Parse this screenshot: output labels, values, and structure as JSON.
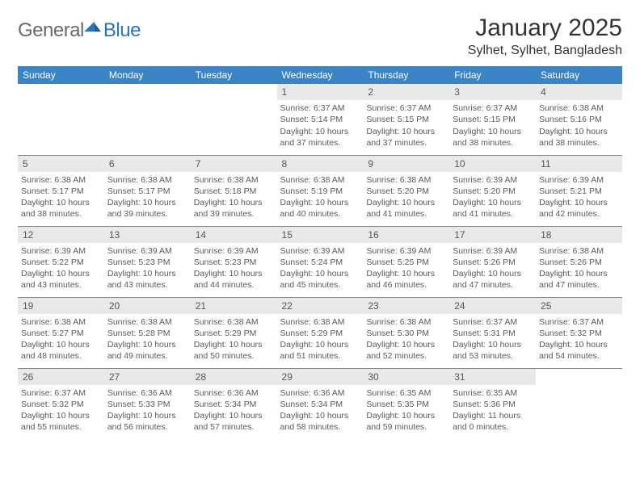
{
  "brand": {
    "general": "General",
    "blue": "Blue"
  },
  "title": {
    "month": "January 2025",
    "location": "Sylhet, Sylhet, Bangladesh"
  },
  "colors": {
    "header_bg": "#3a83b8",
    "header_text": "#ffffff",
    "daynum_bg": "#e9e9e9",
    "rule": "#888888",
    "brand_blue": "#2a74b8",
    "brand_gray": "#6a6a6a",
    "body_text": "#5a5a5a"
  },
  "day_headers": [
    "Sunday",
    "Monday",
    "Tuesday",
    "Wednesday",
    "Thursday",
    "Friday",
    "Saturday"
  ],
  "weeks": [
    [
      {
        "n": "",
        "sr": "",
        "ss": "",
        "dh": "",
        "dm": ""
      },
      {
        "n": "",
        "sr": "",
        "ss": "",
        "dh": "",
        "dm": ""
      },
      {
        "n": "",
        "sr": "",
        "ss": "",
        "dh": "",
        "dm": ""
      },
      {
        "n": "1",
        "sr": "6:37 AM",
        "ss": "5:14 PM",
        "dh": "10",
        "dm": "37"
      },
      {
        "n": "2",
        "sr": "6:37 AM",
        "ss": "5:15 PM",
        "dh": "10",
        "dm": "37"
      },
      {
        "n": "3",
        "sr": "6:37 AM",
        "ss": "5:15 PM",
        "dh": "10",
        "dm": "38"
      },
      {
        "n": "4",
        "sr": "6:38 AM",
        "ss": "5:16 PM",
        "dh": "10",
        "dm": "38"
      }
    ],
    [
      {
        "n": "5",
        "sr": "6:38 AM",
        "ss": "5:17 PM",
        "dh": "10",
        "dm": "38"
      },
      {
        "n": "6",
        "sr": "6:38 AM",
        "ss": "5:17 PM",
        "dh": "10",
        "dm": "39"
      },
      {
        "n": "7",
        "sr": "6:38 AM",
        "ss": "5:18 PM",
        "dh": "10",
        "dm": "39"
      },
      {
        "n": "8",
        "sr": "6:38 AM",
        "ss": "5:19 PM",
        "dh": "10",
        "dm": "40"
      },
      {
        "n": "9",
        "sr": "6:38 AM",
        "ss": "5:20 PM",
        "dh": "10",
        "dm": "41"
      },
      {
        "n": "10",
        "sr": "6:39 AM",
        "ss": "5:20 PM",
        "dh": "10",
        "dm": "41"
      },
      {
        "n": "11",
        "sr": "6:39 AM",
        "ss": "5:21 PM",
        "dh": "10",
        "dm": "42"
      }
    ],
    [
      {
        "n": "12",
        "sr": "6:39 AM",
        "ss": "5:22 PM",
        "dh": "10",
        "dm": "43"
      },
      {
        "n": "13",
        "sr": "6:39 AM",
        "ss": "5:23 PM",
        "dh": "10",
        "dm": "43"
      },
      {
        "n": "14",
        "sr": "6:39 AM",
        "ss": "5:23 PM",
        "dh": "10",
        "dm": "44"
      },
      {
        "n": "15",
        "sr": "6:39 AM",
        "ss": "5:24 PM",
        "dh": "10",
        "dm": "45"
      },
      {
        "n": "16",
        "sr": "6:39 AM",
        "ss": "5:25 PM",
        "dh": "10",
        "dm": "46"
      },
      {
        "n": "17",
        "sr": "6:39 AM",
        "ss": "5:26 PM",
        "dh": "10",
        "dm": "47"
      },
      {
        "n": "18",
        "sr": "6:38 AM",
        "ss": "5:26 PM",
        "dh": "10",
        "dm": "47"
      }
    ],
    [
      {
        "n": "19",
        "sr": "6:38 AM",
        "ss": "5:27 PM",
        "dh": "10",
        "dm": "48"
      },
      {
        "n": "20",
        "sr": "6:38 AM",
        "ss": "5:28 PM",
        "dh": "10",
        "dm": "49"
      },
      {
        "n": "21",
        "sr": "6:38 AM",
        "ss": "5:29 PM",
        "dh": "10",
        "dm": "50"
      },
      {
        "n": "22",
        "sr": "6:38 AM",
        "ss": "5:29 PM",
        "dh": "10",
        "dm": "51"
      },
      {
        "n": "23",
        "sr": "6:38 AM",
        "ss": "5:30 PM",
        "dh": "10",
        "dm": "52"
      },
      {
        "n": "24",
        "sr": "6:37 AM",
        "ss": "5:31 PM",
        "dh": "10",
        "dm": "53"
      },
      {
        "n": "25",
        "sr": "6:37 AM",
        "ss": "5:32 PM",
        "dh": "10",
        "dm": "54"
      }
    ],
    [
      {
        "n": "26",
        "sr": "6:37 AM",
        "ss": "5:32 PM",
        "dh": "10",
        "dm": "55"
      },
      {
        "n": "27",
        "sr": "6:36 AM",
        "ss": "5:33 PM",
        "dh": "10",
        "dm": "56"
      },
      {
        "n": "28",
        "sr": "6:36 AM",
        "ss": "5:34 PM",
        "dh": "10",
        "dm": "57"
      },
      {
        "n": "29",
        "sr": "6:36 AM",
        "ss": "5:34 PM",
        "dh": "10",
        "dm": "58"
      },
      {
        "n": "30",
        "sr": "6:35 AM",
        "ss": "5:35 PM",
        "dh": "10",
        "dm": "59"
      },
      {
        "n": "31",
        "sr": "6:35 AM",
        "ss": "5:36 PM",
        "dh": "11",
        "dm": "0"
      },
      {
        "n": "",
        "sr": "",
        "ss": "",
        "dh": "",
        "dm": ""
      }
    ]
  ]
}
